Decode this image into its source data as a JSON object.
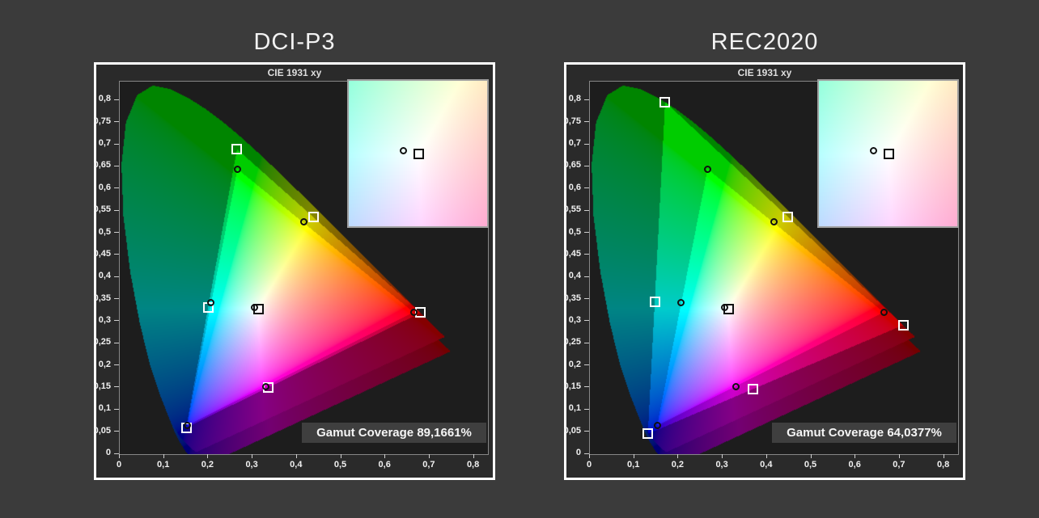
{
  "window": {
    "background": "#3b3b3b"
  },
  "chart_data": {
    "type": "scatter",
    "subtitle": "CIE 1931 xy",
    "x_tick_labels": [
      "0",
      "0,1",
      "0,2",
      "0,3",
      "0,4",
      "0,5",
      "0,6",
      "0,7",
      "0,8"
    ],
    "x_tick_values": [
      0,
      0.1,
      0.2,
      0.3,
      0.4,
      0.5,
      0.6,
      0.7,
      0.8
    ],
    "y_tick_labels": [
      "0",
      "0,05",
      "0,1",
      "0,15",
      "0,2",
      "0,25",
      "0,3",
      "0,35",
      "0,4",
      "0,45",
      "0,5",
      "0,55",
      "0,6",
      "0,65",
      "0,7",
      "0,75",
      "0,8"
    ],
    "y_tick_values": [
      0,
      0.05,
      0.1,
      0.15,
      0.2,
      0.25,
      0.3,
      0.35,
      0.4,
      0.45,
      0.5,
      0.55,
      0.6,
      0.65,
      0.7,
      0.75,
      0.8
    ],
    "xlim": [
      0,
      0.8318
    ],
    "ylim": [
      0,
      0.8428
    ],
    "grid": false,
    "panels": [
      {
        "title": "DCI-P3",
        "coverage_label": "Gamut Coverage 89,1661%",
        "coverage_pct": 89.1661,
        "target": {
          "red": [
            0.68,
            0.32
          ],
          "green": [
            0.265,
            0.69
          ],
          "blue": [
            0.15,
            0.06
          ],
          "cyan": [
            0.1996,
            0.3317
          ],
          "magenta": [
            0.3362,
            0.1513
          ],
          "yellow": [
            0.4378,
            0.5359
          ],
          "white": [
            0.3127,
            0.329
          ]
        }
      },
      {
        "title": "REC2020",
        "coverage_label": "Gamut Coverage 64,0377%",
        "coverage_pct": 64.0377,
        "target": {
          "red": [
            0.708,
            0.292
          ],
          "green": [
            0.17,
            0.797
          ],
          "blue": [
            0.131,
            0.046
          ],
          "cyan": [
            0.1465,
            0.3446
          ],
          "magenta": [
            0.3682,
            0.1471
          ],
          "yellow": [
            0.4465,
            0.5374
          ],
          "white": [
            0.3127,
            0.329
          ]
        }
      }
    ],
    "measured": {
      "red": [
        0.664,
        0.321
      ],
      "green": [
        0.266,
        0.645
      ],
      "blue": [
        0.152,
        0.065
      ],
      "cyan": [
        0.206,
        0.342
      ],
      "magenta": [
        0.33,
        0.152
      ],
      "yellow": [
        0.415,
        0.525
      ],
      "white": [
        0.304,
        0.331
      ]
    },
    "inset": {
      "x_range": [
        0.2723,
        0.3523
      ],
      "y_range": [
        0.2894,
        0.3694
      ]
    },
    "marker_semantics": {
      "square": "target",
      "circle": "measured"
    },
    "spectral_locus": [
      [
        0.1741,
        0.005
      ],
      [
        0.174,
        0.005
      ],
      [
        0.1738,
        0.0049
      ],
      [
        0.173,
        0.0048
      ],
      [
        0.1726,
        0.0048
      ],
      [
        0.1714,
        0.0051
      ],
      [
        0.1689,
        0.0069
      ],
      [
        0.1644,
        0.0109
      ],
      [
        0.1566,
        0.0177
      ],
      [
        0.144,
        0.0297
      ],
      [
        0.1355,
        0.0399
      ],
      [
        0.1241,
        0.0578
      ],
      [
        0.1096,
        0.0868
      ],
      [
        0.0913,
        0.1327
      ],
      [
        0.0687,
        0.2007
      ],
      [
        0.0454,
        0.295
      ],
      [
        0.0235,
        0.4127
      ],
      [
        0.0082,
        0.5384
      ],
      [
        0.0039,
        0.6548
      ],
      [
        0.0139,
        0.7502
      ],
      [
        0.0389,
        0.812
      ],
      [
        0.0743,
        0.8338
      ],
      [
        0.1142,
        0.8262
      ],
      [
        0.1547,
        0.8059
      ],
      [
        0.1929,
        0.7816
      ],
      [
        0.2296,
        0.7543
      ],
      [
        0.2658,
        0.7243
      ],
      [
        0.3016,
        0.6923
      ],
      [
        0.3373,
        0.6589
      ],
      [
        0.3731,
        0.6245
      ],
      [
        0.4087,
        0.5896
      ],
      [
        0.4441,
        0.5547
      ],
      [
        0.4788,
        0.5202
      ],
      [
        0.5125,
        0.4866
      ],
      [
        0.5448,
        0.4544
      ],
      [
        0.5752,
        0.4242
      ],
      [
        0.6029,
        0.3965
      ],
      [
        0.627,
        0.3725
      ],
      [
        0.6482,
        0.3514
      ],
      [
        0.6658,
        0.334
      ],
      [
        0.6801,
        0.3197
      ],
      [
        0.6915,
        0.3083
      ],
      [
        0.7006,
        0.2993
      ],
      [
        0.7079,
        0.292
      ],
      [
        0.719,
        0.2809
      ],
      [
        0.726,
        0.274
      ],
      [
        0.73,
        0.27
      ],
      [
        0.7334,
        0.2666
      ],
      [
        0.7347,
        0.2653
      ]
    ]
  }
}
